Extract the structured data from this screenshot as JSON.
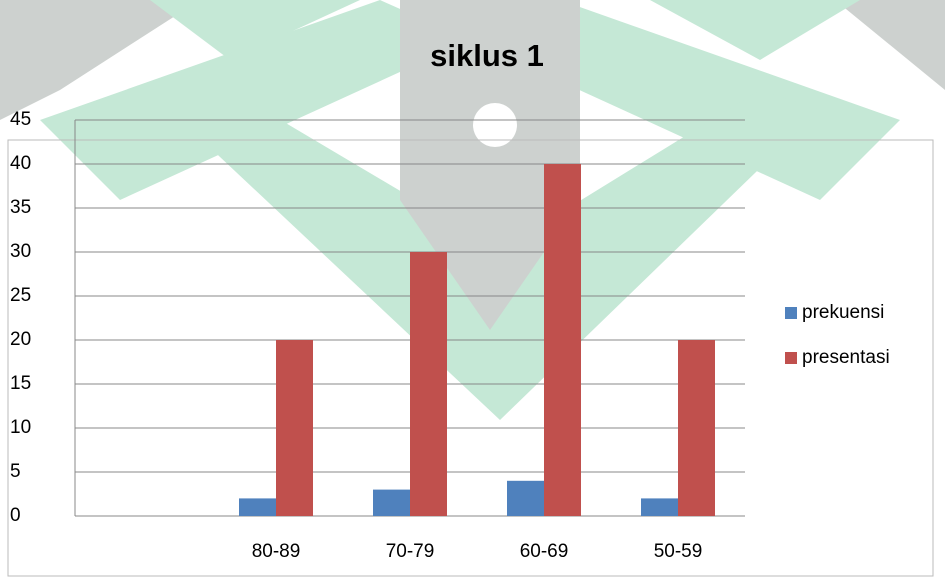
{
  "chart_data": {
    "type": "bar",
    "title": "siklus 1",
    "categories": [
      null,
      "80-89",
      "70-79",
      "60-69",
      "50-59"
    ],
    "series": [
      {
        "name": "prekuensi",
        "color": "#4f81bd",
        "values": [
          null,
          2,
          3,
          4,
          2
        ]
      },
      {
        "name": "presentasi",
        "color": "#c0504d",
        "values": [
          null,
          20,
          30,
          40,
          20
        ]
      }
    ],
    "ylim": [
      0,
      45
    ],
    "yticks": [
      0,
      5,
      10,
      15,
      20,
      25,
      30,
      35,
      40,
      45
    ],
    "grid": true,
    "legend": "right"
  }
}
